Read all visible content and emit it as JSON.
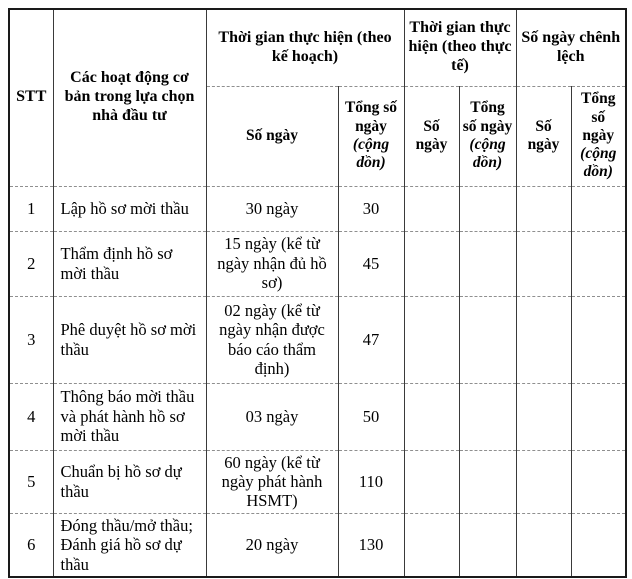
{
  "table": {
    "header": {
      "stt": "STT",
      "activities": "Các hoạt động cơ bản trong lựa chọn nhà đầu tư",
      "plan_group": "Thời gian thực hiện (theo kế hoạch)",
      "actual_group": "Thời gian thực hiện (theo thực tế)",
      "diff_group": "Số ngày chênh lệch",
      "days": "Số ngày",
      "total_days": "Tổng số ngày",
      "total_days_accum": "(cộng dồn)"
    },
    "rows": [
      {
        "stt": "1",
        "activity": "Lập hồ sơ mời thầu",
        "plan_days": "30 ngày",
        "plan_total": "30",
        "actual_days": "",
        "actual_total": "",
        "diff_days": "",
        "diff_total": ""
      },
      {
        "stt": "2",
        "activity": "Thẩm định hồ sơ mời thầu",
        "plan_days": "15 ngày (kể từ ngày nhận đủ hồ sơ)",
        "plan_total": "45",
        "actual_days": "",
        "actual_total": "",
        "diff_days": "",
        "diff_total": ""
      },
      {
        "stt": "3",
        "activity": "Phê duyệt hồ sơ mời thầu",
        "plan_days": "02 ngày (kể từ ngày nhận được báo cáo thẩm định)",
        "plan_total": "47",
        "actual_days": "",
        "actual_total": "",
        "diff_days": "",
        "diff_total": ""
      },
      {
        "stt": "4",
        "activity": "Thông báo mời thầu và phát hành hồ sơ mời thầu",
        "plan_days": "03 ngày",
        "plan_total": "50",
        "actual_days": "",
        "actual_total": "",
        "diff_days": "",
        "diff_total": ""
      },
      {
        "stt": "5",
        "activity": "Chuẩn bị hồ sơ dự thầu",
        "plan_days": "60 ngày (kể từ ngày phát hành HSMT)",
        "plan_total": "110",
        "actual_days": "",
        "actual_total": "",
        "diff_days": "",
        "diff_total": ""
      },
      {
        "stt": "6",
        "activity": "Đóng thầu/mở thầu; Đánh giá hồ sơ dự thầu",
        "plan_days": "20 ngày",
        "plan_total": "130",
        "actual_days": "",
        "actual_total": "",
        "diff_days": "",
        "diff_total": ""
      }
    ]
  }
}
